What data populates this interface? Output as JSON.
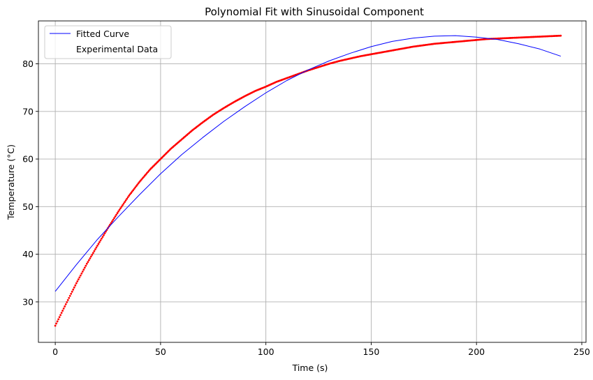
{
  "chart_data": {
    "type": "line",
    "title": "Polynomial Fit with Sinusoidal Component",
    "xlabel": "Time (s)",
    "ylabel": "Temperature (°C)",
    "xlim": [
      -8,
      252
    ],
    "ylim": [
      21.5,
      89
    ],
    "xticks": [
      0,
      50,
      100,
      150,
      200,
      250
    ],
    "yticks": [
      30,
      40,
      50,
      60,
      70,
      80
    ],
    "grid": true,
    "legend_position": "top-left",
    "series": [
      {
        "name": "Fitted Curve",
        "kind": "line",
        "color": "#0000ff",
        "x": [
          0,
          10,
          20,
          30,
          40,
          50,
          60,
          70,
          80,
          90,
          100,
          110,
          120,
          130,
          140,
          150,
          160,
          170,
          180,
          190,
          200,
          210,
          220,
          230,
          240
        ],
        "y": [
          32.2,
          37.8,
          43.1,
          47.9,
          52.5,
          56.9,
          60.9,
          64.5,
          67.9,
          71.0,
          73.9,
          76.5,
          78.7,
          80.6,
          82.2,
          83.6,
          84.7,
          85.4,
          85.8,
          85.9,
          85.6,
          85.1,
          84.2,
          83.1,
          81.6
        ]
      },
      {
        "name": "Experimental Data",
        "kind": "scatter",
        "color": "#ff0000",
        "x": [
          0,
          5,
          10,
          15,
          20,
          25,
          30,
          35,
          40,
          45,
          50,
          55,
          60,
          65,
          70,
          75,
          80,
          85,
          90,
          95,
          100,
          105,
          110,
          115,
          120,
          125,
          130,
          135,
          140,
          145,
          150,
          155,
          160,
          165,
          170,
          175,
          180,
          185,
          190,
          195,
          200,
          205,
          210,
          215,
          220,
          225,
          230,
          235,
          240
        ],
        "y": [
          25.0,
          29.5,
          33.9,
          38.0,
          41.8,
          45.5,
          49.0,
          52.3,
          55.2,
          57.8,
          60.0,
          62.2,
          64.1,
          66.0,
          67.7,
          69.3,
          70.7,
          72.0,
          73.2,
          74.3,
          75.2,
          76.2,
          77.0,
          77.8,
          78.6,
          79.3,
          80.0,
          80.6,
          81.1,
          81.6,
          82.0,
          82.4,
          82.8,
          83.2,
          83.6,
          83.9,
          84.2,
          84.4,
          84.6,
          84.8,
          85.0,
          85.2,
          85.3,
          85.4,
          85.5,
          85.6,
          85.7,
          85.8,
          85.9
        ]
      }
    ]
  }
}
